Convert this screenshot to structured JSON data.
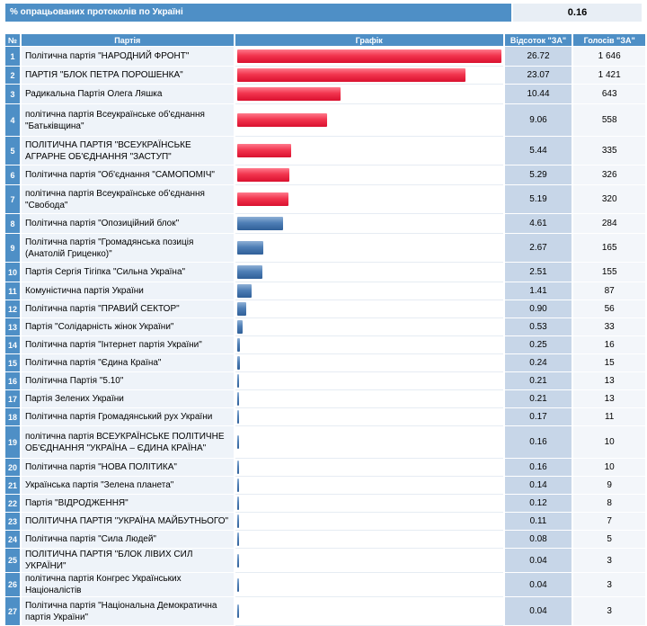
{
  "header": {
    "title": "% опрацьованих протоколів по Україні",
    "value": "0.16"
  },
  "columns": {
    "num": "№",
    "party": "Партія",
    "chart": "Графік",
    "pct": "Відсоток \"ЗА\"",
    "votes": "Голосів \"ЗА\""
  },
  "colors": {
    "top_bar": "#f2354f",
    "other_bar": "#4f7fb6",
    "header_bg": "#4e8fc6"
  },
  "chart_data": {
    "type": "bar",
    "orientation": "horizontal",
    "xlim": [
      0,
      26.72
    ],
    "rows": [
      {
        "n": "1",
        "party": "Політична партія \"НАРОДНИЙ ФРОНТ\"",
        "pct": "26.72",
        "votes": "1 646",
        "value": 26.72,
        "highlight": true,
        "h": 22
      },
      {
        "n": "2",
        "party": "ПАРТІЯ \"БЛОК ПЕТРА ПОРОШЕНКА\"",
        "pct": "23.07",
        "votes": "1 421",
        "value": 23.07,
        "highlight": true,
        "h": 20
      },
      {
        "n": "3",
        "party": "Радикальна Партія Олега Ляшка",
        "pct": "10.44",
        "votes": "643",
        "value": 10.44,
        "highlight": true,
        "h": 22
      },
      {
        "n": "4",
        "party": "політична партія Всеукраїнське об'єднання \"Батьківщина\"",
        "pct": "9.06",
        "votes": "558",
        "value": 9.06,
        "highlight": true,
        "h": 36
      },
      {
        "n": "5",
        "party": "ПОЛІТИЧНА ПАРТІЯ \"ВСЕУКРАЇНСЬКЕ АГРАРНЕ ОБ'ЄДНАННЯ \"ЗАСТУП\"",
        "pct": "5.44",
        "votes": "335",
        "value": 5.44,
        "highlight": true,
        "h": 32
      },
      {
        "n": "6",
        "party": "Політична партія \"Об'єднання \"САМОПОМІЧ\"",
        "pct": "5.29",
        "votes": "326",
        "value": 5.29,
        "highlight": true,
        "h": 22
      },
      {
        "n": "7",
        "party": "політична партія Всеукраїнське об'єднання \"Свобода\"",
        "pct": "5.19",
        "votes": "320",
        "value": 5.19,
        "highlight": true,
        "h": 32
      },
      {
        "n": "8",
        "party": "Політична партія \"Опозиційний блок\"",
        "pct": "4.61",
        "votes": "284",
        "value": 4.61,
        "highlight": false,
        "h": 22
      },
      {
        "n": "9",
        "party": "Політична партія \"Громадянська позиція (Анатолій Гриценко)\"",
        "pct": "2.67",
        "votes": "165",
        "value": 2.67,
        "highlight": false,
        "h": 32
      },
      {
        "n": "10",
        "party": "Партія Сергія Тігіпка \"Сильна Україна\"",
        "pct": "2.51",
        "votes": "155",
        "value": 2.51,
        "highlight": false,
        "h": 22
      },
      {
        "n": "11",
        "party": "Комуністична партія України",
        "pct": "1.41",
        "votes": "87",
        "value": 1.41,
        "highlight": false,
        "h": 20
      },
      {
        "n": "12",
        "party": "Політична партія \"ПРАВИЙ СЕКТОР\"",
        "pct": "0.90",
        "votes": "56",
        "value": 0.9,
        "highlight": false,
        "h": 20
      },
      {
        "n": "13",
        "party": "Партія \"Солідарність жінок України\"",
        "pct": "0.53",
        "votes": "33",
        "value": 0.53,
        "highlight": false,
        "h": 20
      },
      {
        "n": "14",
        "party": "Політична партія \"Інтернет партія України\"",
        "pct": "0.25",
        "votes": "16",
        "value": 0.25,
        "highlight": false,
        "h": 20
      },
      {
        "n": "15",
        "party": "Політична партія \"Єдина Країна\"",
        "pct": "0.24",
        "votes": "15",
        "value": 0.24,
        "highlight": false,
        "h": 20
      },
      {
        "n": "16",
        "party": "Політична Партія \"5.10\"",
        "pct": "0.21",
        "votes": "13",
        "value": 0.21,
        "highlight": false,
        "h": 20
      },
      {
        "n": "17",
        "party": "Партія Зелених України",
        "pct": "0.21",
        "votes": "13",
        "value": 0.21,
        "highlight": false,
        "h": 20
      },
      {
        "n": "18",
        "party": "Політична партія Громадянський рух України",
        "pct": "0.17",
        "votes": "11",
        "value": 0.17,
        "highlight": false,
        "h": 20
      },
      {
        "n": "19",
        "party": "політична партія ВСЕУКРАЇНСЬКЕ ПОЛІТИЧНЕ ОБ'ЄДНАННЯ \"УКРАЇНА – ЄДИНА КРАЇНА\"",
        "pct": "0.16",
        "votes": "10",
        "value": 0.16,
        "highlight": false,
        "h": 36
      },
      {
        "n": "20",
        "party": "Політична партія \"НОВА ПОЛІТИКА\"",
        "pct": "0.16",
        "votes": "10",
        "value": 0.16,
        "highlight": false,
        "h": 20
      },
      {
        "n": "21",
        "party": "Українська партія \"Зелена планета\"",
        "pct": "0.14",
        "votes": "9",
        "value": 0.14,
        "highlight": false,
        "h": 20
      },
      {
        "n": "22",
        "party": "Партія \"ВІДРОДЖЕННЯ\"",
        "pct": "0.12",
        "votes": "8",
        "value": 0.12,
        "highlight": false,
        "h": 20
      },
      {
        "n": "23",
        "party": "ПОЛІТИЧНА ПАРТІЯ \"УКРАЇНА МАЙБУТНЬОГО\"",
        "pct": "0.11",
        "votes": "7",
        "value": 0.11,
        "highlight": false,
        "h": 20
      },
      {
        "n": "24",
        "party": "Політична партія \"Сила Людей\"",
        "pct": "0.08",
        "votes": "5",
        "value": 0.08,
        "highlight": false,
        "h": 20
      },
      {
        "n": "25",
        "party": "ПОЛІТИЧНА ПАРТІЯ \"БЛОК ЛІВИХ СИЛ УКРАЇНИ\"",
        "pct": "0.04",
        "votes": "3",
        "value": 0.04,
        "highlight": false,
        "h": 20
      },
      {
        "n": "26",
        "party": "політична партія Конгрес Українських Націоналістів",
        "pct": "0.04",
        "votes": "3",
        "value": 0.04,
        "highlight": false,
        "h": 20
      },
      {
        "n": "27",
        "party": "Політична партія \"Національна Демократична партія України\"",
        "pct": "0.04",
        "votes": "3",
        "value": 0.04,
        "highlight": false,
        "h": 32
      }
    ]
  }
}
